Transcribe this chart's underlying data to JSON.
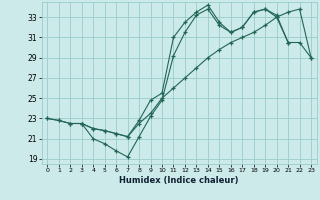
{
  "xlabel": "Humidex (Indice chaleur)",
  "bg_color": "#cceaea",
  "grid_color": "#99cccc",
  "line_color": "#226655",
  "xlim": [
    -0.5,
    23.5
  ],
  "ylim": [
    18.5,
    34.5
  ],
  "yticks": [
    19,
    21,
    23,
    25,
    27,
    29,
    31,
    33
  ],
  "xticks": [
    0,
    1,
    2,
    3,
    4,
    5,
    6,
    7,
    8,
    9,
    10,
    11,
    12,
    13,
    14,
    15,
    16,
    17,
    18,
    19,
    20,
    21,
    22,
    23
  ],
  "line1_x": [
    0,
    1,
    2,
    3,
    4,
    5,
    6,
    7,
    8,
    9,
    10,
    11,
    12,
    13,
    14,
    15,
    16,
    17,
    18,
    19,
    20,
    21
  ],
  "line1_y": [
    23.0,
    22.8,
    22.5,
    22.5,
    21.0,
    20.5,
    19.8,
    19.2,
    21.2,
    23.2,
    24.8,
    29.2,
    31.5,
    33.2,
    33.8,
    32.2,
    31.5,
    32.0,
    33.5,
    33.8,
    33.2,
    30.5
  ],
  "line2_x": [
    0,
    1,
    2,
    3,
    4,
    5,
    6,
    7,
    8,
    9,
    10,
    11,
    12,
    13,
    14,
    15,
    16,
    17,
    18,
    19,
    20,
    21,
    22,
    23
  ],
  "line2_y": [
    23.0,
    22.8,
    22.5,
    22.5,
    22.0,
    21.8,
    21.5,
    21.2,
    22.5,
    23.5,
    25.0,
    26.0,
    27.0,
    28.0,
    29.0,
    29.8,
    30.5,
    31.0,
    31.5,
    32.2,
    33.0,
    33.5,
    33.8,
    29.0
  ],
  "line3_x": [
    3,
    4,
    5,
    6,
    7,
    8,
    9,
    10,
    11,
    12,
    13,
    14,
    15,
    16,
    17,
    18,
    19,
    20,
    21,
    22,
    23
  ],
  "line3_y": [
    22.5,
    22.0,
    21.8,
    21.5,
    21.2,
    22.8,
    24.8,
    25.5,
    31.0,
    32.5,
    33.5,
    34.2,
    32.5,
    31.5,
    32.0,
    33.5,
    33.8,
    33.0,
    30.5,
    30.5,
    29.0
  ]
}
